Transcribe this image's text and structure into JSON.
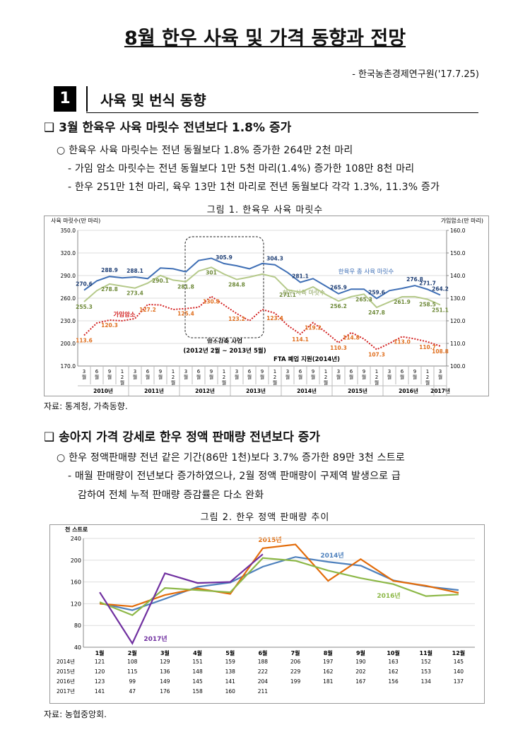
{
  "document": {
    "title": "8월 한우 사육 및 가격 동향과 전망",
    "source": "- 한국농촌경제연구원('17.7.25)",
    "section_number": "1",
    "section_title": "사육 및 번식 동향",
    "blocks": [
      {
        "heading": "❑ 3월 한육우 사육 마릿수 전년보다 1.8% 증가",
        "bullets": [
          "○ 한육우 사육 마릿수는 전년 동월보다 1.8% 증가한 264만 2천 마리",
          "- 가임 암소 마릿수는 전년 동월보다 1만 5천 마리(1.4%) 증가한 108만 8천 마리",
          "- 한우 251만 1천 마리, 육우 13만 1천 마리로 전년 동월보다 각각 1.3%, 11.3% 증가"
        ],
        "caption": "그림 1.  한육우 사육 마릿수",
        "source": "자료: 통계청, 가축동향."
      },
      {
        "heading": "❑ 송아지 가격 강세로 한우 정액 판매량 전년보다 증가",
        "bullets": [
          "○ 한우 정액판매량 전년 같은 기간(86만 1천)보다 3.7% 증가한 89만 3천 스트로",
          "- 매월 판매량이 전년보다 증가하였으나, 2월 정액 판매량이 구제역 발생으로 급",
          "감하여 전체 누적 판매량 증감률은 다소 완화"
        ],
        "caption": "그림 2.  한우 정액 판매량 추이",
        "source": "자료: 농협중앙회."
      }
    ]
  },
  "chart_data": [
    {
      "type": "line",
      "y_label": "사육 마릿수(만 마리)",
      "y2_label": "가임암소(만 마리)",
      "categories": [
        "3월",
        "6월",
        "9월",
        "12월",
        "3월",
        "6월",
        "9월",
        "12월",
        "3월",
        "6월",
        "9월",
        "12월",
        "3월",
        "6월",
        "9월",
        "12월",
        "3월",
        "6월",
        "9월",
        "12월",
        "3월",
        "6월",
        "9월",
        "12월",
        "3월",
        "6월",
        "9월",
        "12월",
        "3월"
      ],
      "x_groups": [
        "2010년",
        "2011년",
        "2012년",
        "2013년",
        "2014년",
        "2015년",
        "2016년",
        "2017년"
      ],
      "ylim": [
        170,
        350
      ],
      "yticks": [
        {
          "value": 170,
          "label": "170.0"
        },
        {
          "value": 200,
          "label": "200.0"
        },
        {
          "value": 230,
          "label": "230.0"
        },
        {
          "value": 260,
          "label": "260.0"
        },
        {
          "value": 290,
          "label": "290.0"
        },
        {
          "value": 320,
          "label": "320.0"
        },
        {
          "value": 350,
          "label": "350.0"
        }
      ],
      "y2lim": [
        100,
        160
      ],
      "y2ticks": [
        {
          "value": 100,
          "label": "100.0"
        },
        {
          "value": 110,
          "label": "110.0"
        },
        {
          "value": 120,
          "label": "120.0"
        },
        {
          "value": 130,
          "label": "130.0"
        },
        {
          "value": 140,
          "label": "140.0"
        },
        {
          "value": 150,
          "label": "150.0"
        },
        {
          "value": 160,
          "label": "160.0"
        }
      ],
      "grid": true,
      "annotations": [
        "암소감축 사업",
        "(2012년 2월 ~ 2013년 5월)",
        "FTA 폐업 지원(2014년)"
      ],
      "series": [
        {
          "name": "한육우 총 사육 마릿수",
          "color": "#3f6fb5",
          "label_color": "#1f3f75",
          "values": [
            270.6,
            283,
            288.9,
            287,
            288.1,
            286,
            300,
            299,
            295,
            310,
            313,
            305.9,
            303,
            299,
            306,
            304.3,
            294,
            281.1,
            286,
            276,
            265.9,
            272,
            272,
            259.6,
            270,
            273,
            276.8,
            271.7,
            264.2
          ],
          "value_labels": [
            "270.6",
            null,
            "288.9",
            null,
            "288.1",
            null,
            null,
            null,
            null,
            null,
            null,
            "305.9",
            null,
            null,
            null,
            "304.3",
            null,
            "281.1",
            null,
            null,
            "265.9",
            null,
            null,
            "259.6",
            null,
            null,
            "276.8",
            "271.7",
            "264.2"
          ]
        },
        {
          "name": "한우 사육 마릿수",
          "color": "#b5c98a",
          "label_color": "#6f8a3a",
          "values": [
            255.3,
            270,
            278.8,
            276,
            273.4,
            280,
            290.1,
            284,
            281.8,
            296,
            301,
            292,
            284.8,
            288,
            292,
            288,
            271.1,
            268,
            275,
            265,
            256.2,
            262,
            265.3,
            247.8,
            255,
            261.9,
            262,
            258.5,
            251.1
          ],
          "value_labels": [
            "255.3",
            null,
            "278.8",
            null,
            "273.4",
            null,
            "290.1",
            null,
            "281.8",
            null,
            "301",
            null,
            "284.8",
            null,
            null,
            null,
            "271.1",
            null,
            null,
            null,
            "256.2",
            null,
            "265.3",
            "247.8",
            null,
            "261.9",
            null,
            "258.5",
            "251.1"
          ]
        },
        {
          "name": "가임암소",
          "color": "#d21f1f",
          "label_color": "#e07020",
          "axis": "y2",
          "dashed": true,
          "values": [
            113.6,
            119,
            120.3,
            120,
            121,
            127.2,
            127,
            125,
            125.4,
            126,
            130.8,
            127,
            123.2,
            120,
            125,
            123.4,
            118,
            114.1,
            119.2,
            115,
            110.3,
            114.8,
            112,
            107.3,
            110,
            113,
            112,
            110.7,
            108.8
          ],
          "value_labels": [
            "113.6",
            null,
            "120.3",
            null,
            null,
            "127.2",
            null,
            null,
            "125.4",
            null,
            "130.8",
            null,
            "123.2",
            null,
            null,
            "123.4",
            null,
            "114.1",
            "119.2",
            null,
            "110.3",
            "114.8",
            null,
            "107.3",
            null,
            "113.0",
            null,
            "110.7",
            "108.8"
          ]
        }
      ]
    },
    {
      "type": "line",
      "y_label": "천 스트로",
      "categories": [
        "1월",
        "2월",
        "3월",
        "4월",
        "5월",
        "6월",
        "7월",
        "8월",
        "9월",
        "10월",
        "11월",
        "12월"
      ],
      "ylim": [
        40,
        240
      ],
      "yticks": [
        40,
        80,
        120,
        160,
        200,
        240
      ],
      "grid": true,
      "data_table": true,
      "series": [
        {
          "name": "2014년",
          "color": "#4f81bd",
          "values": [
            121,
            108,
            129,
            151,
            159,
            188,
            206,
            197,
            190,
            163,
            152,
            145
          ]
        },
        {
          "name": "2015년",
          "color": "#e36c0a",
          "values": [
            120,
            115,
            136,
            148,
            138,
            222,
            229,
            162,
            202,
            162,
            153,
            140
          ]
        },
        {
          "name": "2016년",
          "color": "#8db848",
          "values": [
            123,
            99,
            149,
            145,
            141,
            204,
            199,
            181,
            167,
            156,
            134,
            137
          ]
        },
        {
          "name": "2017년",
          "color": "#7030a0",
          "values": [
            141,
            47,
            176,
            158,
            160,
            211,
            null,
            null,
            null,
            null,
            null,
            null
          ]
        }
      ]
    }
  ]
}
